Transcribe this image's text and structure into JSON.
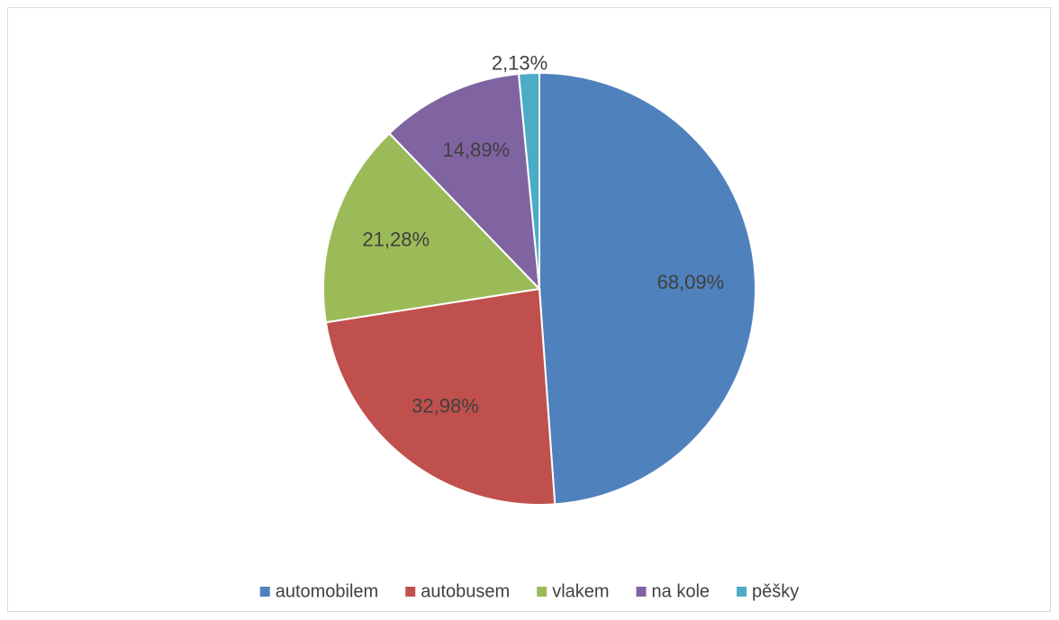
{
  "chart_data": {
    "type": "pie",
    "categories": [
      "automobilem",
      "autobusem",
      "vlakem",
      "na kole",
      "pěšky"
    ],
    "values": [
      68.09,
      32.98,
      21.28,
      14.89,
      2.13
    ],
    "value_labels": [
      "68,09%",
      "32,98%",
      "21,28%",
      "14,89%",
      "2,13%"
    ],
    "colors": [
      "#4f81bd",
      "#c0504d",
      "#9bbb59",
      "#8064a2",
      "#4bacc6"
    ],
    "legend": "bottom"
  }
}
